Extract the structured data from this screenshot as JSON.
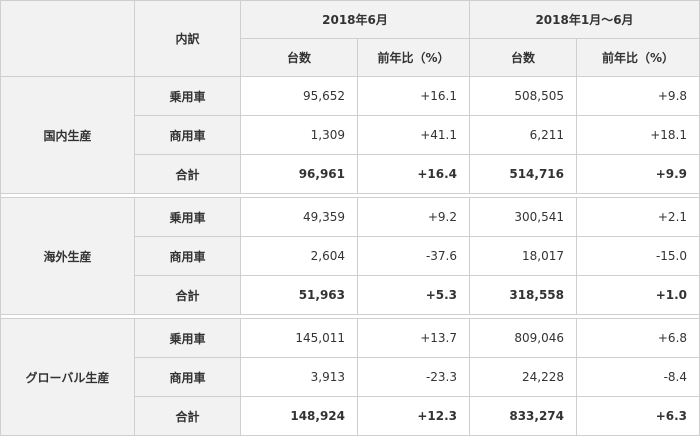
{
  "header": {
    "breakdown": "内訳",
    "period1": "2018年6月",
    "period2": "2018年1月〜6月",
    "units": "台数",
    "yoy": "前年比（%）"
  },
  "groups": [
    {
      "name": "国内生産",
      "rows": [
        {
          "label": "乗用車",
          "units1": "95,652",
          "yoy1": "+16.1",
          "units2": "508,505",
          "yoy2": "+9.8"
        },
        {
          "label": "商用車",
          "units1": "1,309",
          "yoy1": "+41.1",
          "units2": "6,211",
          "yoy2": "+18.1"
        },
        {
          "label": "合計",
          "units1": "96,961",
          "yoy1": "+16.4",
          "units2": "514,716",
          "yoy2": "+9.9"
        }
      ]
    },
    {
      "name": "海外生産",
      "rows": [
        {
          "label": "乗用車",
          "units1": "49,359",
          "yoy1": "+9.2",
          "units2": "300,541",
          "yoy2": "+2.1"
        },
        {
          "label": "商用車",
          "units1": "2,604",
          "yoy1": "-37.6",
          "units2": "18,017",
          "yoy2": "-15.0"
        },
        {
          "label": "合計",
          "units1": "51,963",
          "yoy1": "+5.3",
          "units2": "318,558",
          "yoy2": "+1.0"
        }
      ]
    },
    {
      "name": "グローバル生産",
      "rows": [
        {
          "label": "乗用車",
          "units1": "145,011",
          "yoy1": "+13.7",
          "units2": "809,046",
          "yoy2": "+6.8"
        },
        {
          "label": "商用車",
          "units1": "3,913",
          "yoy1": "-23.3",
          "units2": "24,228",
          "yoy2": "-8.4"
        },
        {
          "label": "合計",
          "units1": "148,924",
          "yoy1": "+12.3",
          "units2": "833,274",
          "yoy2": "+6.3"
        }
      ]
    }
  ]
}
